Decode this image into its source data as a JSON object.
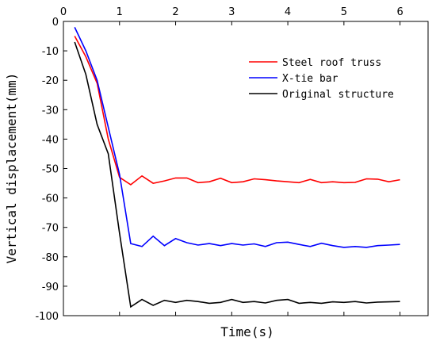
{
  "chart_data": {
    "type": "line",
    "xlabel": "Time(s)",
    "ylabel": "Vertical displacement(mm)",
    "xlim": [
      0,
      6.5
    ],
    "ylim": [
      -100,
      0
    ],
    "xticks": [
      0,
      1,
      2,
      3,
      4,
      5,
      6
    ],
    "yticks": [
      0,
      -10,
      -20,
      -30,
      -40,
      -50,
      -60,
      -70,
      -80,
      -90,
      -100
    ],
    "legend_position": "top-right",
    "grid": false,
    "series": [
      {
        "name": "Steel roof truss",
        "color": "#ff0000",
        "x": [
          0.2,
          0.4,
          0.6,
          0.8,
          1.0,
          1.2,
          1.4,
          1.6,
          1.8,
          2.0,
          2.2,
          2.4,
          2.6,
          2.8,
          3.0,
          3.2,
          3.4,
          3.6,
          3.8,
          4.0,
          4.2,
          4.4,
          4.6,
          4.8,
          5.0,
          5.2,
          5.4,
          5.6,
          5.8,
          6.0
        ],
        "y": [
          -5,
          -12,
          -21,
          -40,
          -53,
          -55.5,
          -52.5,
          -55,
          -54.2,
          -53.2,
          -53.2,
          -54.8,
          -54.5,
          -53.3,
          -54.8,
          -54.5,
          -53.5,
          -53.8,
          -54.2,
          -54.5,
          -54.8,
          -53.7,
          -54.8,
          -54.5,
          -54.8,
          -54.7,
          -53.5,
          -53.6,
          -54.5,
          -53.8
        ]
      },
      {
        "name": "X-tie bar",
        "color": "#0000ff",
        "x": [
          0.2,
          0.4,
          0.6,
          0.8,
          1.0,
          1.2,
          1.4,
          1.6,
          1.8,
          2.0,
          2.2,
          2.4,
          2.6,
          2.8,
          3.0,
          3.2,
          3.4,
          3.6,
          3.8,
          4.0,
          4.2,
          4.4,
          4.6,
          4.8,
          5.0,
          5.2,
          5.4,
          5.6,
          5.8,
          6.0
        ],
        "y": [
          -2,
          -10,
          -20,
          -36,
          -52,
          -75.5,
          -76.5,
          -73,
          -76.2,
          -73.8,
          -75.2,
          -76,
          -75.5,
          -76.2,
          -75.5,
          -76,
          -75.6,
          -76.5,
          -75.2,
          -75,
          -75.8,
          -76.5,
          -75.4,
          -76.2,
          -76.8,
          -76.5,
          -76.8,
          -76.2,
          -76,
          -75.8
        ]
      },
      {
        "name": "Original structure",
        "color": "#000000",
        "x": [
          0.2,
          0.4,
          0.6,
          0.8,
          1.0,
          1.2,
          1.4,
          1.6,
          1.8,
          2.0,
          2.2,
          2.4,
          2.6,
          2.8,
          3.0,
          3.2,
          3.4,
          3.6,
          3.8,
          4.0,
          4.2,
          4.4,
          4.6,
          4.8,
          5.0,
          5.2,
          5.4,
          5.6,
          5.8,
          6.0
        ],
        "y": [
          -7,
          -18,
          -35,
          -45,
          -72,
          -97,
          -94.5,
          -96.5,
          -94.8,
          -95.5,
          -94.8,
          -95.2,
          -95.8,
          -95.5,
          -94.5,
          -95.5,
          -95.2,
          -95.7,
          -94.8,
          -94.5,
          -95.8,
          -95.5,
          -95.8,
          -95.3,
          -95.5,
          -95.2,
          -95.7,
          -95.4,
          -95.3,
          -95.2
        ]
      }
    ]
  }
}
